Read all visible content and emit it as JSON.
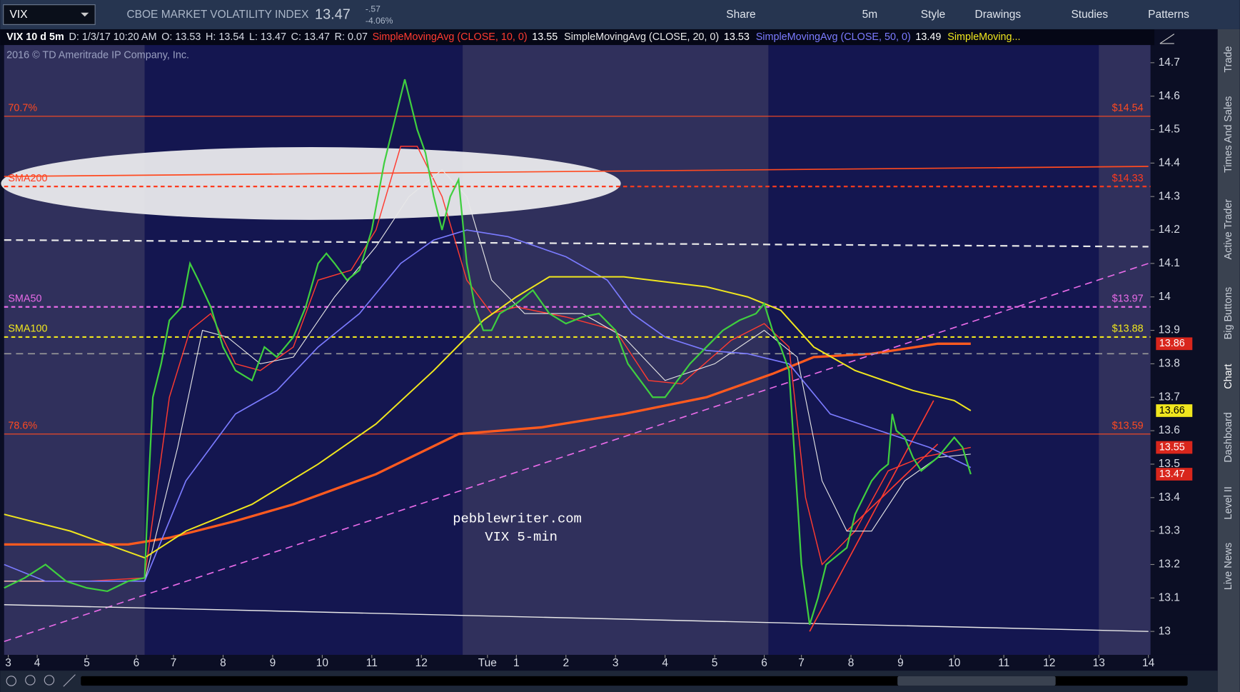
{
  "toolbar": {
    "symbol": "VIX",
    "description": "CBOE MARKET VOLATILITY INDEX",
    "last": 13.47,
    "change": "-.57",
    "change_pct": "-4.06%",
    "buttons": [
      "Share",
      "5m",
      "Style",
      "Drawings",
      "Studies",
      "Patterns"
    ]
  },
  "info": [
    "VIX 10 d 5m",
    "D: 1/3/17 10:20 AM",
    "O: 13.53",
    "H: 13.54",
    "L: 13.47",
    "C: 13.47",
    "R: 0.07"
  ],
  "copyright": "2016 © TD Ameritrade IP Company, Inc.",
  "side_tabs": [
    "Trade",
    "Times And Sales",
    "Active Trader",
    "Big Buttons",
    "Chart",
    "Dashboard",
    "Level II",
    "Live News"
  ],
  "chart_data": {
    "type": "line",
    "xlim": [
      0,
      277.5
    ],
    "ylim": [
      12.93,
      14.8
    ],
    "xticks": [
      {
        "value": 1,
        "label": "3"
      },
      {
        "value": 8,
        "label": "4"
      },
      {
        "value": 20,
        "label": "5"
      },
      {
        "value": 32,
        "label": "6"
      },
      {
        "value": 41,
        "label": "7"
      },
      {
        "value": 53,
        "label": "8"
      },
      {
        "value": 65,
        "label": "9"
      },
      {
        "value": 77,
        "label": "10"
      },
      {
        "value": 89,
        "label": "11"
      },
      {
        "value": 101,
        "label": "12"
      },
      {
        "value": 117,
        "label": "Tue"
      },
      {
        "value": 124,
        "label": "1"
      },
      {
        "value": 136,
        "label": "2"
      },
      {
        "value": 148,
        "label": "3"
      },
      {
        "value": 160,
        "label": "4"
      },
      {
        "value": 172,
        "label": "5"
      },
      {
        "value": 184,
        "label": "6"
      },
      {
        "value": 193,
        "label": "7"
      },
      {
        "value": 205,
        "label": "8"
      },
      {
        "value": 217,
        "label": "9"
      },
      {
        "value": 230,
        "label": "10"
      },
      {
        "value": 242,
        "label": "11"
      },
      {
        "value": 253,
        "label": "12"
      },
      {
        "value": 265,
        "label": "13"
      },
      {
        "value": 277,
        "label": "14"
      }
    ],
    "yticks": [
      13,
      13.1,
      13.2,
      13.3,
      13.4,
      13.5,
      13.6,
      13.7,
      13.8,
      13.9,
      14,
      14.1,
      14.2,
      14.3,
      14.4,
      14.5,
      14.6,
      14.7
    ],
    "price": {
      "color": "#3fcf3f",
      "x": [
        0,
        5,
        10,
        15,
        20,
        25,
        30,
        34,
        35,
        36,
        38,
        40,
        43,
        45,
        47,
        50,
        53,
        56,
        60,
        63,
        66,
        70,
        73,
        76,
        78,
        80,
        83,
        86,
        89,
        92,
        95,
        97,
        100,
        102,
        104,
        106,
        108,
        110,
        112,
        114,
        116,
        118,
        120,
        124,
        128,
        132,
        136,
        140,
        144,
        148,
        151,
        154,
        157,
        160,
        163,
        166,
        170,
        174,
        178,
        182,
        184,
        186,
        188,
        190,
        192,
        193,
        195,
        197,
        199,
        201,
        204,
        206,
        208,
        210,
        212,
        214,
        215,
        216,
        218,
        220,
        222,
        224,
        226,
        228,
        230,
        232,
        234
      ],
      "values": [
        13.13,
        13.16,
        13.2,
        13.15,
        13.13,
        13.12,
        13.15,
        13.16,
        13.45,
        13.7,
        13.8,
        13.93,
        13.97,
        14.1,
        14.05,
        13.97,
        13.85,
        13.78,
        13.75,
        13.85,
        13.82,
        13.88,
        13.97,
        14.1,
        14.13,
        14.1,
        14.05,
        14.08,
        14.2,
        14.4,
        14.55,
        14.65,
        14.5,
        14.43,
        14.3,
        14.2,
        14.3,
        14.35,
        14.1,
        13.97,
        13.9,
        13.9,
        13.95,
        13.98,
        14.02,
        13.95,
        13.92,
        13.94,
        13.95,
        13.9,
        13.8,
        13.75,
        13.7,
        13.7,
        13.75,
        13.8,
        13.85,
        13.9,
        13.93,
        13.95,
        13.98,
        13.9,
        13.85,
        13.78,
        13.4,
        13.2,
        13.02,
        13.1,
        13.2,
        13.22,
        13.25,
        13.35,
        13.4,
        13.45,
        13.48,
        13.5,
        13.65,
        13.6,
        13.58,
        13.52,
        13.48,
        13.5,
        13.52,
        13.55,
        13.58,
        13.55,
        13.47
      ]
    },
    "series": [
      {
        "name": "SimpleMovingAvg (CLOSE, 10, 0)",
        "legend_value": 13.55,
        "color": "#ff3b30",
        "width": 1.3,
        "x": [
          0,
          20,
          34,
          40,
          45,
          50,
          56,
          62,
          70,
          76,
          84,
          90,
          96,
          100,
          106,
          112,
          118,
          124,
          136,
          148,
          156,
          164,
          176,
          184,
          190,
          194,
          198,
          206,
          214,
          222,
          234
        ],
        "values": [
          13.15,
          13.15,
          13.16,
          13.7,
          13.9,
          13.95,
          13.8,
          13.78,
          13.85,
          14.05,
          14.08,
          14.2,
          14.45,
          14.45,
          14.3,
          14.05,
          13.95,
          13.97,
          13.94,
          13.9,
          13.75,
          13.74,
          13.87,
          13.92,
          13.85,
          13.4,
          13.2,
          13.3,
          13.48,
          13.52,
          13.55
        ]
      },
      {
        "name": "SimpleMovingAvg (CLOSE, 20, 0)",
        "legend_value": 13.53,
        "color": "#e8e8e8",
        "width": 1,
        "x": [
          0,
          34,
          42,
          48,
          54,
          62,
          70,
          80,
          90,
          98,
          106,
          112,
          118,
          126,
          140,
          150,
          160,
          172,
          184,
          192,
          198,
          204,
          210,
          218,
          226,
          234
        ],
        "values": [
          13.15,
          13.15,
          13.55,
          13.9,
          13.88,
          13.8,
          13.82,
          14.0,
          14.15,
          14.3,
          14.38,
          14.3,
          14.05,
          13.95,
          13.95,
          13.88,
          13.75,
          13.8,
          13.9,
          13.82,
          13.45,
          13.3,
          13.3,
          13.45,
          13.52,
          13.53
        ]
      },
      {
        "name": "SimpleMovingAvg (CLOSE, 50, 0)",
        "legend_value": 13.49,
        "color": "#7b7bff",
        "width": 1.5,
        "x": [
          0,
          10,
          34,
          44,
          56,
          66,
          76,
          86,
          96,
          104,
          112,
          122,
          136,
          146,
          152,
          160,
          170,
          180,
          190,
          200,
          212,
          224,
          234
        ],
        "values": [
          13.2,
          13.15,
          13.15,
          13.45,
          13.65,
          13.72,
          13.85,
          13.95,
          14.1,
          14.17,
          14.2,
          14.18,
          14.12,
          14.05,
          13.95,
          13.88,
          13.84,
          13.83,
          13.8,
          13.65,
          13.6,
          13.55,
          13.49
        ]
      },
      {
        "name": "SimpleMoving...",
        "color": "#f0e61e",
        "width": 1.8,
        "x": [
          0,
          16,
          34,
          44,
          60,
          76,
          90,
          104,
          116,
          124,
          132,
          150,
          170,
          180,
          188,
          196,
          206,
          220,
          230,
          234
        ],
        "values": [
          13.35,
          13.3,
          13.22,
          13.3,
          13.38,
          13.5,
          13.62,
          13.78,
          13.93,
          14.0,
          14.06,
          14.06,
          14.03,
          14.0,
          13.96,
          13.85,
          13.78,
          13.72,
          13.69,
          13.66
        ]
      }
    ],
    "trendlines": [
      {
        "color": "#ff5a1f",
        "width": 3,
        "dash": false,
        "x": [
          0,
          30,
          40,
          56,
          70,
          90,
          110,
          130,
          150,
          170,
          186,
          196,
          210,
          226,
          234
        ],
        "values": [
          13.26,
          13.26,
          13.28,
          13.33,
          13.38,
          13.47,
          13.59,
          13.61,
          13.65,
          13.7,
          13.77,
          13.82,
          13.83,
          13.86,
          13.86
        ]
      },
      {
        "color": "#e86be8",
        "width": 1.5,
        "dash": true,
        "x": [
          0,
          277
        ],
        "values": [
          12.97,
          14.1
        ]
      },
      {
        "color": "#e8e8e8",
        "width": 1.3,
        "dash": false,
        "x": [
          0,
          277
        ],
        "values": [
          13.08,
          13.0
        ]
      },
      {
        "color": "#e8e8e8",
        "width": 2,
        "dash": true,
        "x": [
          0,
          277
        ],
        "values": [
          14.17,
          14.15
        ]
      },
      {
        "color": "#9a9a9a",
        "width": 1.5,
        "dash": true,
        "x": [
          0,
          277
        ],
        "values": [
          13.83,
          13.83
        ]
      },
      {
        "color": "#ff4a20",
        "width": 1.5,
        "dash": false,
        "x": [
          0,
          277
        ],
        "values": [
          14.36,
          14.39
        ]
      },
      {
        "color": "#ff3b30",
        "width": 1.5,
        "dash": false,
        "x": [
          195,
          225
        ],
        "values": [
          13.0,
          13.69
        ]
      },
      {
        "color": "#ff3b30",
        "width": 1.5,
        "dash": false,
        "x": [
          204,
          226
        ],
        "values": [
          13.3,
          13.56
        ]
      }
    ],
    "levels": [
      {
        "label": "70.7%",
        "value": 14.54,
        "value_label": "$14.54",
        "color": "#ff4a20",
        "dash": false
      },
      {
        "label": "SMA200",
        "value": 14.33,
        "value_label": "$14.33",
        "color": "#ff3b1f",
        "dash": true
      },
      {
        "label": "SMA50",
        "value": 13.97,
        "value_label": "$13.97",
        "color": "#e86be8",
        "dash": true
      },
      {
        "label": "SMA100",
        "value": 13.88,
        "value_label": "$13.88",
        "color": "#f0e61e",
        "dash": true
      },
      {
        "label": "78.6%",
        "value": 13.59,
        "value_label": "$13.59",
        "color": "#ff4a20",
        "dash": false
      }
    ],
    "price_markers": [
      {
        "value": 13.86,
        "color": "#d9261c"
      },
      {
        "value": 13.66,
        "color": "#f0e61e"
      },
      {
        "value": 13.55,
        "color": "#d9261c"
      },
      {
        "value": 13.47,
        "color": "#d9261c"
      }
    ],
    "annotations": [
      "pebblewriter.com",
      "VIX 5-min"
    ]
  }
}
